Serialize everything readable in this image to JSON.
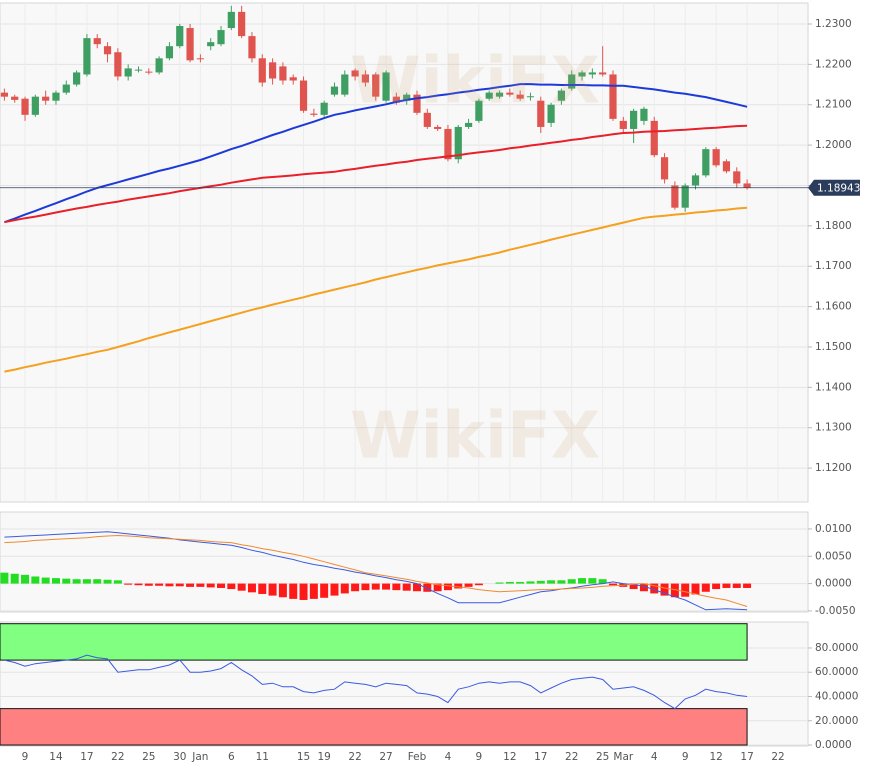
{
  "watermark": "WikiFX",
  "chart_data": [
    {
      "type": "candlestick",
      "categories": [
        null,
        null,
        "9",
        null,
        null,
        "14",
        null,
        null,
        "17",
        null,
        null,
        "22",
        null,
        null,
        "25",
        null,
        null,
        "30",
        null,
        "Jan",
        null,
        null,
        "6",
        null,
        null,
        "11",
        null,
        null,
        null,
        "15",
        null,
        "19",
        null,
        null,
        "22",
        null,
        null,
        "27",
        null,
        null,
        "Feb",
        null,
        null,
        "4",
        null,
        null,
        "9",
        null,
        null,
        "12",
        null,
        null,
        "17",
        null,
        null,
        "22",
        null,
        null,
        "25",
        null,
        "Mar",
        null,
        null,
        "4",
        null,
        null,
        "9",
        null,
        null,
        "12",
        null,
        null,
        "17",
        null,
        null,
        "22"
      ],
      "open": [
        1.213,
        1.212,
        1.2115,
        1.2075,
        1.212,
        1.211,
        1.213,
        1.215,
        1.2175,
        1.2265,
        1.2245,
        1.223,
        1.217,
        1.2185,
        1.2182,
        1.218,
        1.2215,
        1.2245,
        1.229,
        1.2215,
        1.2245,
        1.225,
        1.229,
        1.233,
        1.227,
        1.2215,
        1.2205,
        1.2195,
        1.2168,
        1.216,
        1.2078,
        1.2075,
        1.2125,
        1.2125,
        1.2185,
        1.2175,
        1.2175,
        1.211,
        1.212,
        1.211,
        1.2125,
        1.208,
        1.2045,
        1.204,
        1.1965,
        1.2045,
        1.206,
        1.2115,
        1.212,
        1.213,
        1.2125,
        1.212,
        1.211,
        1.2055,
        1.211,
        1.214,
        1.217,
        1.2175,
        1.218,
        1.2175,
        1.206,
        1.204,
        1.206,
        1.206,
        1.197,
        1.19,
        1.1845,
        1.19,
        1.1925,
        1.199,
        1.196,
        1.1935,
        1.1905,
        null,
        null,
        null
      ],
      "high": [
        1.214,
        1.2125,
        1.212,
        1.2125,
        1.2135,
        1.2135,
        1.216,
        1.2185,
        1.2275,
        1.2275,
        1.2255,
        1.224,
        1.22,
        1.2195,
        1.219,
        1.222,
        1.2255,
        1.23,
        1.23,
        1.2225,
        1.2265,
        1.2295,
        1.2345,
        1.2345,
        1.228,
        1.2225,
        1.2215,
        1.2205,
        1.2175,
        1.217,
        1.209,
        1.211,
        1.2155,
        1.2185,
        1.219,
        1.2185,
        1.218,
        1.2185,
        1.213,
        1.213,
        1.2135,
        1.209,
        1.205,
        1.205,
        1.205,
        1.2065,
        1.2115,
        1.2135,
        1.2135,
        1.214,
        1.2135,
        1.213,
        1.212,
        1.2105,
        1.214,
        1.2185,
        1.2185,
        1.219,
        1.2245,
        1.2185,
        1.207,
        1.209,
        1.2095,
        1.207,
        1.198,
        1.191,
        1.1905,
        1.193,
        1.1995,
        1.1995,
        1.1965,
        1.1945,
        1.1915,
        null,
        null,
        null
      ],
      "low": [
        1.211,
        1.2105,
        1.206,
        1.207,
        1.21,
        1.21,
        1.2125,
        1.2145,
        1.217,
        1.224,
        1.2205,
        1.216,
        1.216,
        1.218,
        1.2175,
        1.2175,
        1.221,
        1.224,
        1.2205,
        1.2205,
        1.2235,
        1.2245,
        1.2285,
        1.2265,
        1.2205,
        1.2145,
        1.215,
        1.215,
        1.215,
        1.208,
        1.207,
        1.207,
        1.212,
        1.212,
        1.216,
        1.2145,
        1.211,
        1.2105,
        1.21,
        1.21,
        1.2075,
        1.204,
        1.2035,
        1.196,
        1.1955,
        1.204,
        1.2055,
        1.211,
        1.2115,
        1.212,
        1.211,
        1.211,
        1.203,
        1.2045,
        1.21,
        1.2135,
        1.216,
        1.2165,
        1.217,
        1.206,
        1.203,
        1.2005,
        1.205,
        1.197,
        1.1905,
        1.184,
        1.1835,
        1.189,
        1.192,
        1.1945,
        1.193,
        1.1895,
        1.189,
        null,
        null,
        null
      ],
      "close": [
        1.212,
        1.2112,
        1.2075,
        1.212,
        1.211,
        1.213,
        1.215,
        1.218,
        1.2265,
        1.225,
        1.2225,
        1.217,
        1.219,
        1.2187,
        1.218,
        1.2215,
        1.2245,
        1.2295,
        1.221,
        1.2213,
        1.2255,
        1.2285,
        1.233,
        1.227,
        1.2215,
        1.2155,
        1.2165,
        1.216,
        1.216,
        1.2085,
        1.2075,
        1.2105,
        1.2145,
        1.2175,
        1.217,
        1.2155,
        1.212,
        1.218,
        1.2105,
        1.2125,
        1.208,
        1.2045,
        1.204,
        1.1965,
        1.2045,
        1.2055,
        1.211,
        1.213,
        1.213,
        1.2125,
        1.2115,
        1.2121,
        1.2045,
        1.21,
        1.2135,
        1.2175,
        1.218,
        1.218,
        1.2175,
        1.2065,
        1.204,
        1.2085,
        1.209,
        1.1975,
        1.1915,
        1.1845,
        1.19,
        1.1925,
        1.199,
        1.195,
        1.1935,
        1.1905,
        1.1894,
        null,
        null,
        null
      ],
      "up_color": "#3f9f62",
      "down_color": "#e0544f",
      "series": [
        {
          "color": "#1d3ad8",
          "values": [
            1.1809,
            1.1818,
            1.1828,
            1.1837,
            1.1847,
            1.1856,
            1.1866,
            1.1875,
            1.1885,
            1.1894,
            1.1901,
            1.1908,
            1.1915,
            1.1922,
            1.1929,
            1.1936,
            1.1942,
            1.1949,
            1.1956,
            1.1963,
            1.1972,
            1.1981,
            1.199,
            1.1998,
            1.2007,
            1.2016,
            1.2025,
            1.2033,
            1.2042,
            1.205,
            1.2058,
            1.2067,
            1.2075,
            1.208,
            1.2086,
            1.2091,
            1.2096,
            1.2101,
            1.2107,
            1.2112,
            1.2116,
            1.2119,
            1.2123,
            1.2126,
            1.213,
            1.2133,
            1.2137,
            1.214,
            1.2144,
            1.2147,
            1.2151,
            1.2151,
            1.215,
            1.215,
            1.2149,
            1.2149,
            1.2149,
            1.2148,
            1.2148,
            1.2147,
            1.2147,
            1.2144,
            1.2141,
            1.2138,
            1.2134,
            1.213,
            1.2127,
            1.2123,
            1.2119,
            1.2113,
            1.2107,
            1.2101,
            1.2095,
            null,
            null,
            null
          ]
        },
        {
          "color": "#e8202a",
          "values": [
            1.1809,
            1.1814,
            1.1819,
            1.1823,
            1.1828,
            1.1833,
            1.1838,
            1.1843,
            1.1847,
            1.1852,
            1.1856,
            1.186,
            1.1865,
            1.1869,
            1.1873,
            1.1877,
            1.1881,
            1.1886,
            1.189,
            1.1894,
            1.1898,
            1.1902,
            1.1907,
            1.1911,
            1.1915,
            1.1919,
            1.1921,
            1.1923,
            1.1925,
            1.1928,
            1.193,
            1.1932,
            1.1934,
            1.1938,
            1.1941,
            1.1945,
            1.1949,
            1.1952,
            1.1956,
            1.1959,
            1.1963,
            1.1966,
            1.1969,
            1.1972,
            1.1975,
            1.1979,
            1.1982,
            1.1985,
            1.1988,
            1.1992,
            1.1995,
            1.1999,
            1.2002,
            1.2006,
            1.2009,
            1.2013,
            1.2016,
            1.202,
            1.2023,
            1.2027,
            1.203,
            1.2031,
            1.2033,
            1.2034,
            1.2035,
            1.2037,
            1.2038,
            1.204,
            1.2042,
            1.2043,
            1.2045,
            1.2047,
            1.2048,
            null,
            null,
            null
          ]
        },
        {
          "color": "#f5a01e",
          "values": [
            1.1439,
            1.1444,
            1.145,
            1.1455,
            1.1461,
            1.1466,
            1.1471,
            1.1477,
            1.1482,
            1.1488,
            1.1493,
            1.15,
            1.1507,
            1.1514,
            1.1522,
            1.1529,
            1.1536,
            1.1543,
            1.155,
            1.1557,
            1.1564,
            1.1571,
            1.1578,
            1.1585,
            1.1592,
            1.1598,
            1.1605,
            1.1611,
            1.1617,
            1.1623,
            1.163,
            1.1636,
            1.1642,
            1.1648,
            1.1654,
            1.166,
            1.1667,
            1.1673,
            1.1679,
            1.1685,
            1.1691,
            1.1696,
            1.1702,
            1.1707,
            1.1712,
            1.1717,
            1.1723,
            1.1728,
            1.1734,
            1.1741,
            1.1747,
            1.1753,
            1.1759,
            1.1766,
            1.1772,
            1.1778,
            1.1784,
            1.179,
            1.1796,
            1.1802,
            1.1808,
            1.1814,
            1.182,
            1.1823,
            1.1825,
            1.1828,
            1.183,
            1.1833,
            1.1835,
            1.1838,
            1.184,
            1.1843,
            1.1845,
            null,
            null,
            null
          ]
        }
      ],
      "last_price": {
        "value": 1.18943,
        "label": "1.189430",
        "color": "#2b3d5c"
      },
      "ylim": [
        1.1116,
        1.2352
      ],
      "yticks": [
        {
          "value": 1.23,
          "label": "1.2300"
        },
        {
          "value": 1.22,
          "label": "1.2200"
        },
        {
          "value": 1.21,
          "label": "1.2100"
        },
        {
          "value": 1.2,
          "label": "1.2000"
        },
        {
          "value": 1.19,
          "label": "1.1900"
        },
        {
          "value": 1.18,
          "label": "1.1800"
        },
        {
          "value": 1.17,
          "label": "1.1700"
        },
        {
          "value": 1.16,
          "label": "1.1600"
        },
        {
          "value": 1.15,
          "label": "1.1500"
        },
        {
          "value": 1.14,
          "label": "1.1400"
        },
        {
          "value": 1.13,
          "label": "1.1300"
        },
        {
          "value": 1.12,
          "label": "1.1200"
        }
      ],
      "grid": true
    },
    {
      "type": "macd",
      "bars": {
        "up_color": "#22dd22",
        "down_color": "#ff1a1a",
        "values": [
          0.002,
          0.0018,
          0.0016,
          0.0013,
          0.0011,
          0.001,
          0.0009,
          0.0008,
          0.0008,
          0.0008,
          0.0007,
          0.0006,
          -0.0002,
          -0.0003,
          -0.0004,
          -0.0004,
          -0.0005,
          -0.0005,
          -0.0006,
          -0.0006,
          -0.0007,
          -0.0008,
          -0.001,
          -0.0013,
          -0.0016,
          -0.0019,
          -0.0022,
          -0.0025,
          -0.0028,
          -0.003,
          -0.0028,
          -0.0026,
          -0.0022,
          -0.0018,
          -0.0014,
          -0.0012,
          -0.0011,
          -0.0011,
          -0.0012,
          -0.0013,
          -0.0014,
          -0.0015,
          -0.0014,
          -0.0012,
          -0.0009,
          -0.0006,
          -0.0003,
          0.0,
          0.0002,
          0.0003,
          0.0003,
          0.0004,
          0.0005,
          0.0006,
          0.0006,
          0.0008,
          0.001,
          0.001,
          0.0008,
          -0.0003,
          -0.0006,
          -0.001,
          -0.0014,
          -0.0018,
          -0.0022,
          -0.0025,
          -0.0024,
          -0.002,
          -0.0015,
          -0.001,
          -0.0008,
          -0.0008,
          -0.0008,
          null,
          null,
          null
        ]
      },
      "series": [
        {
          "color": "#3a5be0",
          "values": [
            0.0085,
            0.0086,
            0.0087,
            0.0088,
            0.0089,
            0.009,
            0.0091,
            0.0092,
            0.0093,
            0.0094,
            0.0095,
            0.0093,
            0.0091,
            0.0089,
            0.0087,
            0.0085,
            0.0083,
            0.008,
            0.0078,
            0.0076,
            0.0074,
            0.0072,
            0.007,
            0.0066,
            0.0061,
            0.0057,
            0.0052,
            0.0048,
            0.0044,
            0.0039,
            0.0035,
            0.0032,
            0.0028,
            0.0025,
            0.0021,
            0.0018,
            0.0014,
            0.0011,
            0.0007,
            0.0004,
            0.0,
            -0.0009,
            -0.0018,
            -0.0026,
            -0.0035,
            -0.0035,
            -0.0035,
            -0.0035,
            -0.0035,
            -0.003,
            -0.0025,
            -0.002,
            -0.0015,
            -0.0013,
            -0.001,
            -0.0008,
            -0.0005,
            -0.0002,
            0.0,
            0.0003,
            0.0,
            -0.0002,
            -0.0005,
            -0.0011,
            -0.0018,
            -0.0024,
            -0.003,
            -0.0039,
            -0.0048,
            -0.0047,
            -0.0046,
            -0.0047,
            -0.0048,
            null,
            null,
            null
          ]
        },
        {
          "color": "#f08a30",
          "values": [
            0.0075,
            0.0076,
            0.0077,
            0.0079,
            0.008,
            0.0081,
            0.0082,
            0.0083,
            0.0084,
            0.0086,
            0.0087,
            0.0088,
            0.0087,
            0.0086,
            0.0084,
            0.0083,
            0.0082,
            0.0081,
            0.008,
            0.0079,
            0.0077,
            0.0076,
            0.0075,
            0.0071,
            0.0068,
            0.0064,
            0.0061,
            0.0057,
            0.0054,
            0.005,
            0.0045,
            0.004,
            0.0035,
            0.003,
            0.0025,
            0.002,
            0.0017,
            0.0014,
            0.0011,
            0.0008,
            0.0004,
            0.0001,
            -0.0002,
            -0.0004,
            -0.0006,
            -0.0008,
            -0.0011,
            -0.0013,
            -0.0015,
            -0.0014,
            -0.0013,
            -0.0012,
            -0.0011,
            -0.0011,
            -0.001,
            -0.0009,
            -0.0008,
            -0.0007,
            -0.0005,
            -0.0004,
            -0.0003,
            -0.0001,
            0.0,
            -0.0004,
            -0.0008,
            -0.0011,
            -0.0015,
            -0.0019,
            -0.0023,
            -0.0027,
            -0.003,
            -0.0036,
            -0.0042,
            null,
            null,
            null
          ]
        }
      ],
      "ylim": [
        -0.0052,
        0.0131
      ],
      "yticks": [
        {
          "value": 0.01,
          "label": "0.0100"
        },
        {
          "value": 0.005,
          "label": "0.0050"
        },
        {
          "value": 0,
          "label": "0.0000"
        },
        {
          "value": -0.005,
          "label": "-0.0050"
        }
      ],
      "grid": true
    },
    {
      "type": "rsi",
      "zones": [
        {
          "from": 70,
          "to": 100,
          "color": "#80ff80"
        },
        {
          "from": 0,
          "to": 30,
          "color": "#ff8080"
        }
      ],
      "series": [
        {
          "color": "#3a5be0",
          "values": [
            70,
            68,
            65,
            67,
            68,
            69,
            70,
            71,
            74,
            72,
            71,
            60,
            61,
            62,
            62,
            64,
            66,
            70,
            60,
            60,
            61,
            63,
            68,
            62,
            57,
            50,
            51,
            48,
            48,
            44,
            43,
            45,
            46,
            52,
            51,
            50,
            48,
            51,
            50,
            49,
            43,
            42,
            40,
            35,
            46,
            48,
            51,
            52,
            51,
            52,
            52,
            49,
            43,
            47,
            51,
            54,
            55,
            56,
            54,
            46,
            47,
            48,
            45,
            41,
            35,
            30,
            38,
            41,
            46,
            44,
            43,
            41,
            40,
            null,
            null,
            null
          ]
        }
      ],
      "ylim": [
        -0.8,
        101.4
      ],
      "yticks": [
        {
          "value": 80,
          "label": "80.0000"
        },
        {
          "value": 60,
          "label": "60.0000"
        },
        {
          "value": 40,
          "label": "40.0000"
        },
        {
          "value": 20,
          "label": "20.0000"
        },
        {
          "value": 0,
          "label": "0.0000"
        }
      ],
      "grid": true
    }
  ]
}
